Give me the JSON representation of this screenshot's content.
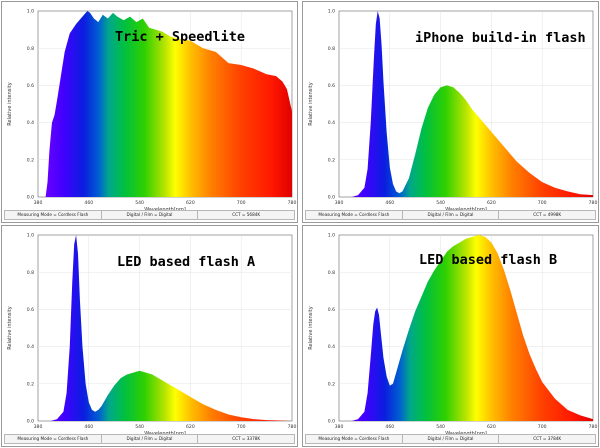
{
  "chart_data": [
    {
      "type": "area",
      "title": "Tric + Speedlite",
      "xlabel": "Wavelength[nm]",
      "ylabel": "Relative intensity",
      "xlim": [
        380,
        780
      ],
      "ylim": [
        0,
        1.0
      ],
      "x_ticks": [
        "380",
        "460",
        "540",
        "620",
        "700",
        "780"
      ],
      "y_ticks": [
        "0.0",
        "0.2",
        "0.4",
        "0.6",
        "0.8",
        "1.0"
      ],
      "x": [
        380,
        392,
        395,
        398,
        402,
        406,
        410,
        416,
        422,
        430,
        440,
        450,
        455,
        458,
        462,
        468,
        475,
        482,
        490,
        498,
        505,
        515,
        525,
        535,
        545,
        555,
        565,
        575,
        590,
        605,
        620,
        640,
        660,
        680,
        700,
        720,
        740,
        755,
        765,
        772,
        776,
        780
      ],
      "values": [
        0.0,
        0.0,
        0.08,
        0.25,
        0.4,
        0.44,
        0.52,
        0.65,
        0.78,
        0.88,
        0.93,
        0.97,
        0.99,
        1.0,
        0.99,
        0.96,
        0.94,
        0.98,
        0.96,
        0.99,
        0.97,
        0.95,
        0.97,
        0.94,
        0.96,
        0.91,
        0.9,
        0.89,
        0.86,
        0.85,
        0.84,
        0.8,
        0.78,
        0.72,
        0.71,
        0.69,
        0.66,
        0.65,
        0.62,
        0.58,
        0.52,
        0.46
      ],
      "status": [
        "Measuring Mode = Cordless Flash",
        "Digital / Film = Digital",
        "CCT = 5684K"
      ]
    },
    {
      "type": "area",
      "title": "iPhone build-in flash",
      "xlabel": "Wavelength[nm]",
      "ylabel": "Relative intensity",
      "xlim": [
        380,
        780
      ],
      "ylim": [
        0,
        1.0
      ],
      "x_ticks": [
        "380",
        "460",
        "540",
        "620",
        "700",
        "780"
      ],
      "y_ticks": [
        "0.0",
        "0.2",
        "0.4",
        "0.6",
        "0.8",
        "1.0"
      ],
      "x": [
        380,
        390,
        400,
        410,
        420,
        425,
        430,
        435,
        438,
        441,
        444,
        447,
        450,
        455,
        460,
        465,
        470,
        475,
        480,
        490,
        500,
        510,
        520,
        530,
        540,
        550,
        560,
        570,
        580,
        590,
        600,
        620,
        640,
        660,
        680,
        700,
        720,
        740,
        760,
        780
      ],
      "values": [
        0.0,
        0.0,
        0.0,
        0.01,
        0.05,
        0.15,
        0.4,
        0.75,
        0.93,
        1.0,
        0.96,
        0.82,
        0.62,
        0.35,
        0.16,
        0.07,
        0.03,
        0.02,
        0.03,
        0.1,
        0.23,
        0.37,
        0.48,
        0.55,
        0.59,
        0.6,
        0.59,
        0.56,
        0.52,
        0.47,
        0.43,
        0.35,
        0.27,
        0.19,
        0.13,
        0.08,
        0.05,
        0.03,
        0.015,
        0.01
      ],
      "status": [
        "Measuring Mode = Cordless Flash",
        "Digital / Film = Digital",
        "CCT = 4998K"
      ]
    },
    {
      "type": "area",
      "title": "LED based flash A",
      "xlabel": "Wavelength[nm]",
      "ylabel": "Relative intensity",
      "xlim": [
        380,
        780
      ],
      "ylim": [
        0,
        1.0
      ],
      "x_ticks": [
        "380",
        "460",
        "540",
        "620",
        "700",
        "780"
      ],
      "y_ticks": [
        "0.0",
        "0.2",
        "0.4",
        "0.6",
        "0.8",
        "1.0"
      ],
      "x": [
        380,
        400,
        410,
        420,
        425,
        430,
        434,
        437,
        440,
        443,
        446,
        450,
        455,
        460,
        465,
        470,
        475,
        480,
        490,
        500,
        510,
        520,
        530,
        540,
        550,
        560,
        570,
        580,
        600,
        620,
        640,
        660,
        680,
        700,
        720,
        740,
        760,
        780
      ],
      "values": [
        0.0,
        0.0,
        0.01,
        0.05,
        0.15,
        0.4,
        0.75,
        0.95,
        1.0,
        0.9,
        0.65,
        0.4,
        0.2,
        0.1,
        0.06,
        0.05,
        0.06,
        0.08,
        0.14,
        0.19,
        0.23,
        0.25,
        0.26,
        0.27,
        0.26,
        0.25,
        0.23,
        0.21,
        0.17,
        0.13,
        0.09,
        0.06,
        0.035,
        0.02,
        0.01,
        0.005,
        0.003,
        0.0
      ],
      "status": [
        "Measuring Mode = Cordless Flash",
        "Digital / Film = Digital",
        "CCT = 3378K"
      ]
    },
    {
      "type": "area",
      "title": "LED based flash B",
      "xlabel": "Wavelength[nm]",
      "ylabel": "Relative intensity",
      "xlim": [
        380,
        780
      ],
      "ylim": [
        0,
        1.0
      ],
      "x_ticks": [
        "380",
        "460",
        "540",
        "620",
        "700",
        "780"
      ],
      "y_ticks": [
        "0.0",
        "0.2",
        "0.4",
        "0.6",
        "0.8",
        "1.0"
      ],
      "x": [
        380,
        400,
        410,
        420,
        425,
        430,
        434,
        437,
        440,
        443,
        446,
        450,
        455,
        460,
        465,
        470,
        480,
        490,
        500,
        510,
        520,
        530,
        540,
        550,
        560,
        570,
        580,
        590,
        600,
        610,
        620,
        630,
        640,
        650,
        660,
        670,
        680,
        690,
        700,
        720,
        740,
        760,
        780
      ],
      "values": [
        0.0,
        0.0,
        0.01,
        0.05,
        0.15,
        0.35,
        0.52,
        0.59,
        0.61,
        0.57,
        0.47,
        0.34,
        0.24,
        0.19,
        0.2,
        0.26,
        0.38,
        0.49,
        0.59,
        0.67,
        0.75,
        0.81,
        0.86,
        0.91,
        0.94,
        0.96,
        0.98,
        0.99,
        1.0,
        0.99,
        0.96,
        0.9,
        0.81,
        0.7,
        0.58,
        0.46,
        0.36,
        0.28,
        0.21,
        0.12,
        0.06,
        0.03,
        0.01
      ],
      "status": [
        "Measuring Mode = Cordless Flash",
        "Digital / Film = Digital",
        "CCT = 3784K"
      ]
    }
  ]
}
